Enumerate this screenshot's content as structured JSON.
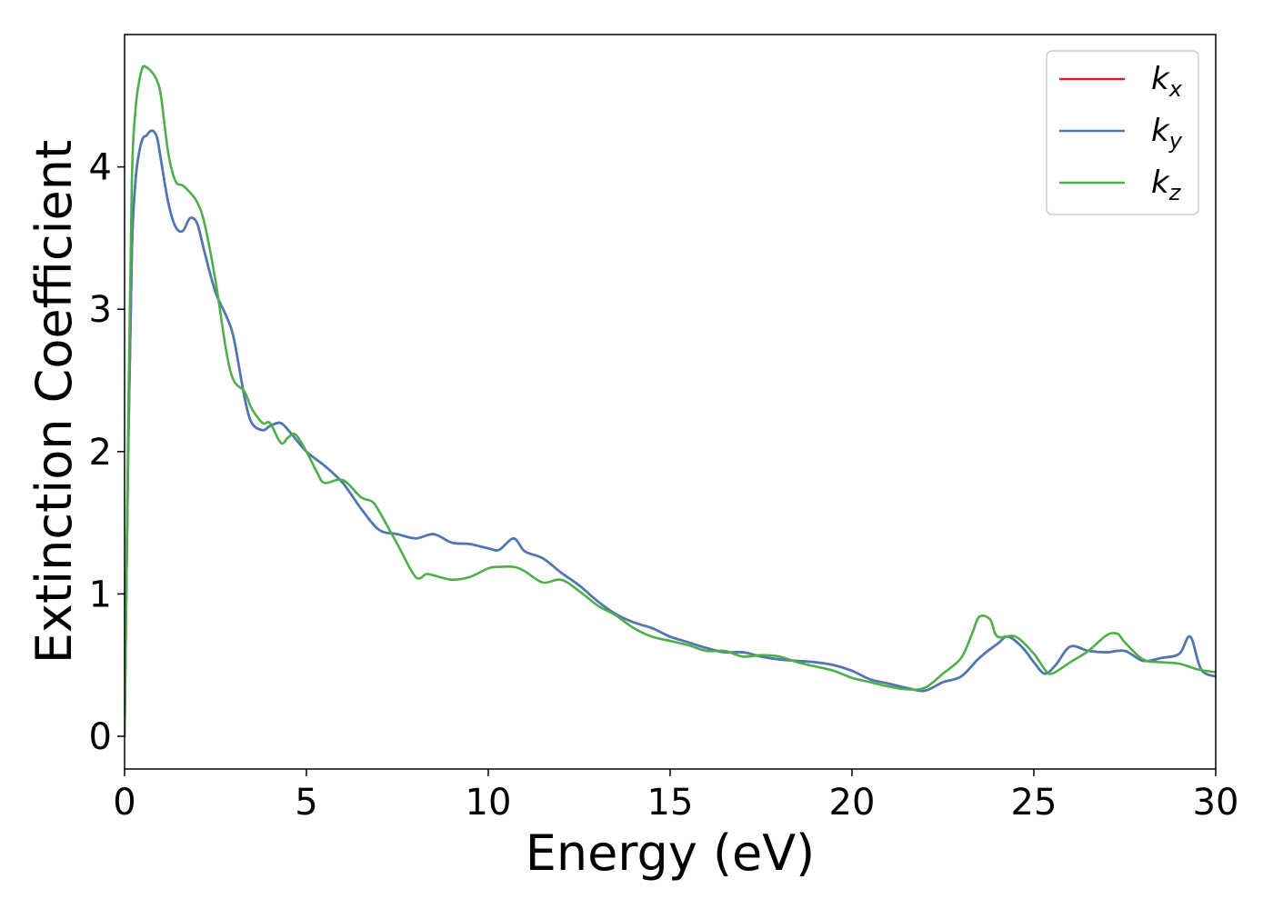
{
  "chart_data": {
    "type": "line",
    "title": "",
    "xlabel": "Energy (eV)",
    "ylabel": "Extinction Coefficient",
    "xlim": [
      0,
      30
    ],
    "ylim": [
      -0.23,
      4.93
    ],
    "xticks": [
      0,
      5,
      10,
      15,
      20,
      25,
      30
    ],
    "yticks": [
      0,
      1,
      2,
      3,
      4
    ],
    "grid": false,
    "legend_position": "top-right",
    "series": [
      {
        "name": "k",
        "subscript": "x",
        "color": "#e41a1c",
        "x": [
          0,
          0.1,
          0.2,
          0.3,
          0.4,
          0.5,
          0.6,
          0.7,
          0.8,
          0.9,
          1.0,
          1.2,
          1.4,
          1.6,
          1.8,
          2.0,
          2.2,
          2.5,
          2.8,
          3.0,
          3.3,
          3.5,
          3.8,
          4.0,
          4.3,
          4.6,
          5.0,
          5.5,
          6.0,
          6.5,
          7.0,
          7.5,
          8.0,
          8.5,
          9.0,
          9.5,
          10.0,
          10.3,
          10.7,
          11.0,
          11.5,
          12.0,
          12.5,
          13.0,
          13.5,
          14.0,
          14.5,
          15.0,
          15.5,
          16.0,
          16.5,
          17.0,
          17.5,
          18.0,
          18.5,
          19.0,
          19.5,
          20.0,
          20.5,
          21.0,
          21.5,
          22.0,
          22.5,
          23.0,
          23.5,
          24.0,
          24.3,
          24.7,
          25.0,
          25.3,
          25.6,
          26.0,
          26.5,
          27.0,
          27.5,
          28.0,
          28.5,
          29.0,
          29.3,
          29.6,
          30.0
        ],
        "y": [
          0.0,
          2.0,
          3.4,
          3.9,
          4.1,
          4.2,
          4.22,
          4.25,
          4.25,
          4.2,
          4.05,
          3.75,
          3.58,
          3.55,
          3.64,
          3.6,
          3.4,
          3.12,
          2.95,
          2.8,
          2.38,
          2.2,
          2.15,
          2.18,
          2.2,
          2.12,
          2.0,
          1.9,
          1.78,
          1.6,
          1.45,
          1.42,
          1.39,
          1.42,
          1.36,
          1.35,
          1.32,
          1.31,
          1.39,
          1.3,
          1.25,
          1.15,
          1.06,
          0.95,
          0.86,
          0.8,
          0.76,
          0.7,
          0.66,
          0.62,
          0.59,
          0.59,
          0.56,
          0.54,
          0.53,
          0.52,
          0.5,
          0.46,
          0.4,
          0.37,
          0.34,
          0.32,
          0.38,
          0.42,
          0.55,
          0.65,
          0.7,
          0.62,
          0.52,
          0.44,
          0.5,
          0.63,
          0.6,
          0.59,
          0.6,
          0.53,
          0.55,
          0.58,
          0.7,
          0.47,
          0.42
        ]
      },
      {
        "name": "k",
        "subscript": "y",
        "color": "#4a7ab5",
        "x": [
          0,
          0.1,
          0.2,
          0.3,
          0.4,
          0.5,
          0.6,
          0.7,
          0.8,
          0.9,
          1.0,
          1.2,
          1.4,
          1.6,
          1.8,
          2.0,
          2.2,
          2.5,
          2.8,
          3.0,
          3.3,
          3.5,
          3.8,
          4.0,
          4.3,
          4.6,
          5.0,
          5.5,
          6.0,
          6.5,
          7.0,
          7.5,
          8.0,
          8.5,
          9.0,
          9.5,
          10.0,
          10.3,
          10.7,
          11.0,
          11.5,
          12.0,
          12.5,
          13.0,
          13.5,
          14.0,
          14.5,
          15.0,
          15.5,
          16.0,
          16.5,
          17.0,
          17.5,
          18.0,
          18.5,
          19.0,
          19.5,
          20.0,
          20.5,
          21.0,
          21.5,
          22.0,
          22.5,
          23.0,
          23.5,
          24.0,
          24.3,
          24.7,
          25.0,
          25.3,
          25.6,
          26.0,
          26.5,
          27.0,
          27.5,
          28.0,
          28.5,
          29.0,
          29.3,
          29.6,
          30.0
        ],
        "y": [
          0.0,
          2.0,
          3.4,
          3.9,
          4.1,
          4.2,
          4.22,
          4.25,
          4.25,
          4.2,
          4.05,
          3.75,
          3.58,
          3.55,
          3.64,
          3.6,
          3.4,
          3.12,
          2.95,
          2.8,
          2.38,
          2.2,
          2.15,
          2.18,
          2.2,
          2.12,
          2.0,
          1.9,
          1.78,
          1.6,
          1.45,
          1.42,
          1.39,
          1.42,
          1.36,
          1.35,
          1.32,
          1.31,
          1.39,
          1.3,
          1.25,
          1.15,
          1.06,
          0.95,
          0.86,
          0.8,
          0.76,
          0.7,
          0.66,
          0.62,
          0.59,
          0.59,
          0.56,
          0.54,
          0.53,
          0.52,
          0.5,
          0.46,
          0.4,
          0.37,
          0.34,
          0.32,
          0.38,
          0.42,
          0.55,
          0.65,
          0.7,
          0.62,
          0.52,
          0.44,
          0.5,
          0.63,
          0.6,
          0.59,
          0.6,
          0.53,
          0.55,
          0.58,
          0.7,
          0.47,
          0.42
        ]
      },
      {
        "name": "k",
        "subscript": "z",
        "color": "#4daf4a",
        "x": [
          0,
          0.1,
          0.2,
          0.3,
          0.4,
          0.5,
          0.6,
          0.7,
          0.8,
          0.9,
          1.0,
          1.2,
          1.4,
          1.6,
          1.8,
          2.0,
          2.2,
          2.5,
          2.8,
          3.0,
          3.3,
          3.5,
          3.8,
          4.0,
          4.3,
          4.5,
          4.7,
          5.0,
          5.3,
          5.5,
          6.0,
          6.5,
          6.8,
          7.0,
          7.5,
          8.0,
          8.3,
          8.5,
          9.0,
          9.5,
          10.0,
          10.3,
          10.7,
          11.0,
          11.5,
          12.0,
          12.5,
          13.0,
          13.5,
          14.0,
          14.5,
          15.0,
          15.5,
          16.0,
          16.5,
          17.0,
          17.5,
          18.0,
          18.5,
          19.0,
          19.5,
          20.0,
          20.5,
          21.0,
          21.5,
          22.0,
          22.5,
          23.0,
          23.3,
          23.5,
          23.8,
          24.0,
          24.5,
          25.0,
          25.3,
          25.5,
          26.0,
          26.5,
          27.0,
          27.3,
          27.5,
          28.0,
          28.5,
          29.0,
          29.5,
          30.0
        ],
        "y": [
          0.0,
          2.2,
          3.9,
          4.4,
          4.6,
          4.7,
          4.7,
          4.68,
          4.65,
          4.6,
          4.5,
          4.1,
          3.9,
          3.87,
          3.82,
          3.75,
          3.6,
          3.2,
          2.7,
          2.5,
          2.42,
          2.3,
          2.2,
          2.2,
          2.06,
          2.1,
          2.12,
          2.0,
          1.85,
          1.78,
          1.8,
          1.68,
          1.65,
          1.58,
          1.35,
          1.12,
          1.14,
          1.13,
          1.1,
          1.12,
          1.18,
          1.19,
          1.19,
          1.16,
          1.08,
          1.1,
          1.02,
          0.92,
          0.85,
          0.76,
          0.7,
          0.67,
          0.64,
          0.6,
          0.6,
          0.56,
          0.57,
          0.56,
          0.52,
          0.49,
          0.46,
          0.41,
          0.38,
          0.35,
          0.33,
          0.34,
          0.44,
          0.55,
          0.72,
          0.84,
          0.82,
          0.7,
          0.7,
          0.58,
          0.47,
          0.44,
          0.52,
          0.6,
          0.71,
          0.72,
          0.66,
          0.54,
          0.52,
          0.51,
          0.47,
          0.45
        ]
      }
    ]
  }
}
